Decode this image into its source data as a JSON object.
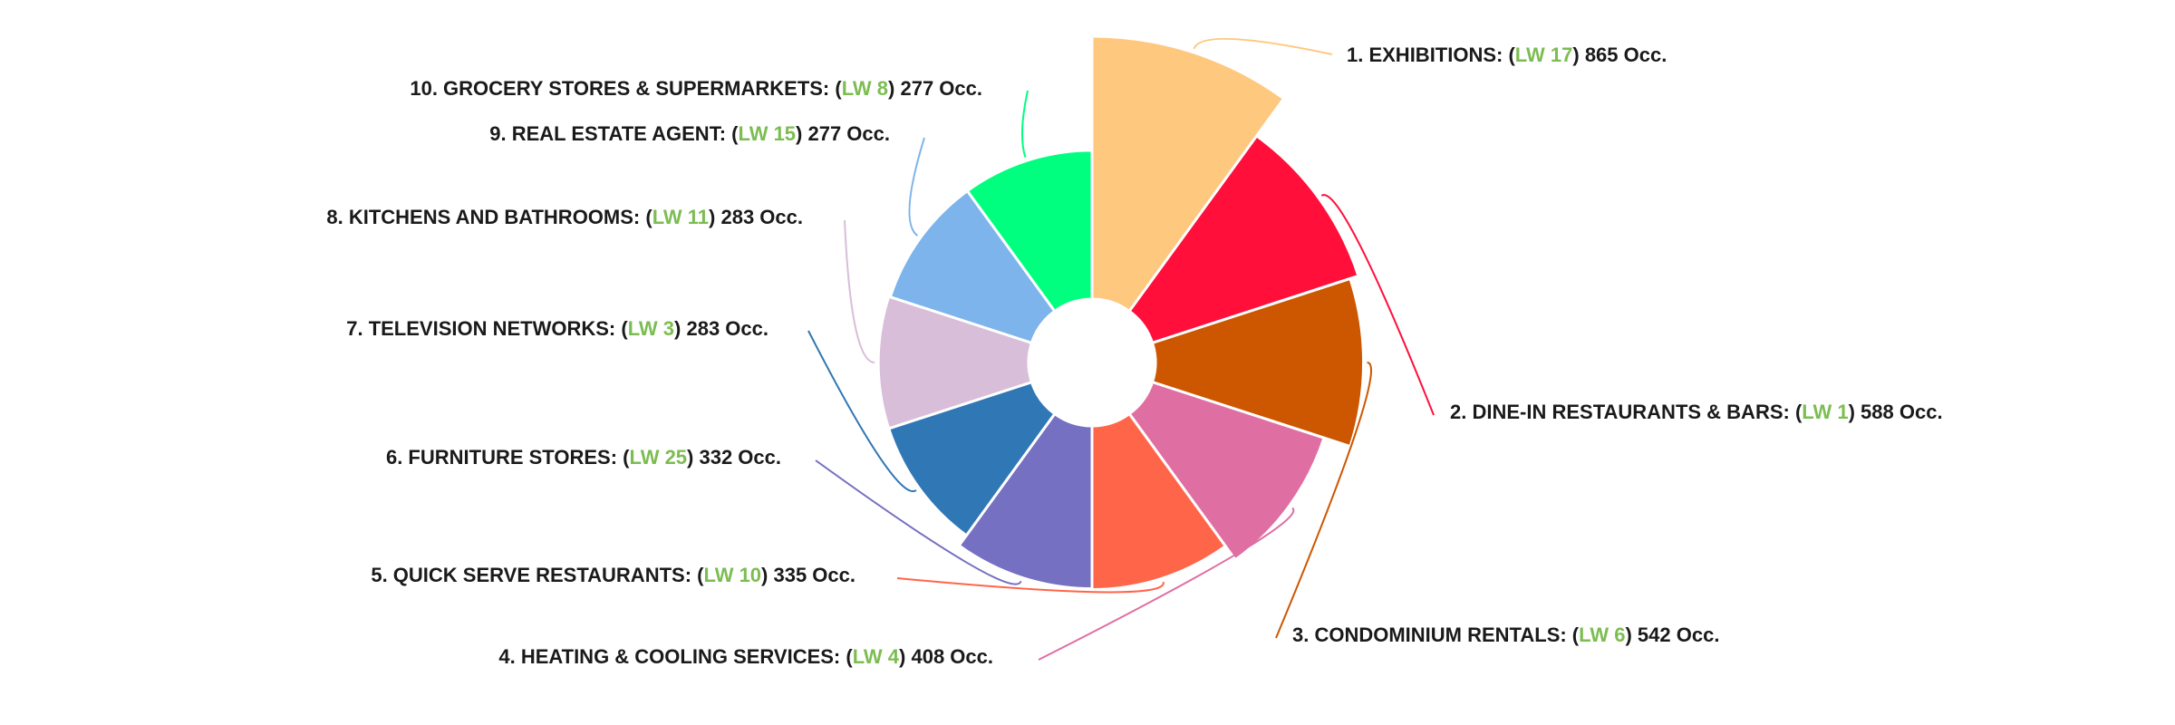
{
  "chart_data": {
    "type": "pie",
    "variant": "variable-radius donut (radius proportional to value)",
    "value_unit": "Occ.",
    "lw_prefix": "LW",
    "lw_color": "#7cbd52",
    "slices": [
      {
        "rank": 1,
        "name": "EXHIBITIONS",
        "lw": 17,
        "value": 865,
        "color": "#fec87f"
      },
      {
        "rank": 2,
        "name": "DINE-IN RESTAURANTS & BARS",
        "lw": 1,
        "value": 588,
        "color": "#ff0f3a"
      },
      {
        "rank": 3,
        "name": "CONDOMINIUM RENTALS",
        "lw": 6,
        "value": 542,
        "color": "#cc5700"
      },
      {
        "rank": 4,
        "name": "HEATING & COOLING SERVICES",
        "lw": 4,
        "value": 408,
        "color": "#df6fa2"
      },
      {
        "rank": 5,
        "name": "QUICK SERVE RESTAURANTS",
        "lw": 10,
        "value": 335,
        "color": "#ff6549"
      },
      {
        "rank": 6,
        "name": "FURNITURE STORES",
        "lw": 25,
        "value": 332,
        "color": "#7570c1"
      },
      {
        "rank": 7,
        "name": "TELEVISION NETWORKS",
        "lw": 3,
        "value": 283,
        "color": "#3077b5"
      },
      {
        "rank": 8,
        "name": "KITCHENS AND BATHROOMS",
        "lw": 11,
        "value": 283,
        "color": "#d8bed9"
      },
      {
        "rank": 9,
        "name": "REAL ESTATE AGENT",
        "lw": 15,
        "value": 277,
        "color": "#7cb4eb"
      },
      {
        "rank": 10,
        "name": "GROCERY STORES & SUPERMARKETS",
        "lw": 8,
        "value": 277,
        "color": "#00ff7f"
      }
    ]
  }
}
